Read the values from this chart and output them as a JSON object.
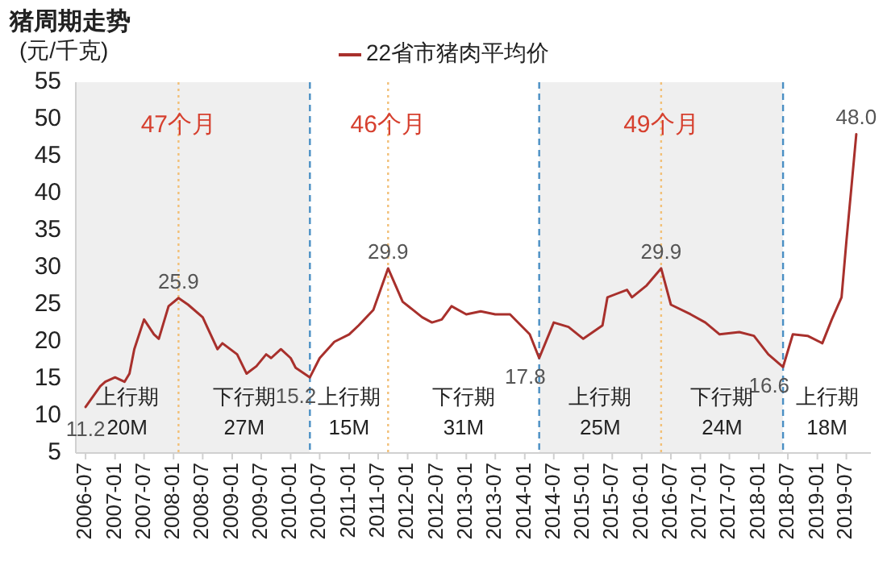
{
  "chart_data": {
    "type": "line",
    "title": "猪周期走势",
    "ylabel": "(元/千克)",
    "legend": "top",
    "x": [
      "2006-07",
      "2006-10",
      "2006-11",
      "2007-01",
      "2007-03",
      "2007-04",
      "2007-05",
      "2007-07",
      "2007-09",
      "2007-10",
      "2007-12",
      "2008-02",
      "2008-04",
      "2008-07",
      "2008-10",
      "2008-11",
      "2009-02",
      "2009-04",
      "2009-06",
      "2009-08",
      "2009-09",
      "2009-11",
      "2010-01",
      "2010-02",
      "2010-05",
      "2010-07",
      "2010-10",
      "2011-01",
      "2011-03",
      "2011-06",
      "2011-09",
      "2011-12",
      "2012-04",
      "2012-06",
      "2012-08",
      "2012-10",
      "2013-01",
      "2013-04",
      "2013-07",
      "2013-10",
      "2014-02",
      "2014-04",
      "2014-07",
      "2014-10",
      "2015-01",
      "2015-05",
      "2015-06",
      "2015-10",
      "2015-11",
      "2016-02",
      "2016-05",
      "2016-07",
      "2016-11",
      "2017-02",
      "2017-05",
      "2017-09",
      "2017-12",
      "2018-03",
      "2018-06",
      "2018-08",
      "2018-11",
      "2019-02",
      "2019-04",
      "2019-06",
      "2019-07",
      "2019-08",
      "2019-09"
    ],
    "series": [
      {
        "name": "22省市猪肉平均价",
        "color": "#a8302c",
        "values": [
          11.2,
          14.0,
          14.6,
          15.2,
          14.6,
          15.7,
          19,
          23,
          21,
          20.4,
          24.8,
          25.9,
          25,
          23.3,
          19,
          19.8,
          18.3,
          15.7,
          16.7,
          18.3,
          17.8,
          19,
          17.8,
          16.5,
          15.2,
          17.8,
          20,
          21,
          22.2,
          24.3,
          29.9,
          25.4,
          23.3,
          22.6,
          23,
          24.8,
          23.7,
          24.1,
          23.7,
          23.7,
          21,
          17.8,
          22.6,
          22,
          20.4,
          22.2,
          26,
          27,
          26,
          27.6,
          29.9,
          25,
          23.7,
          22.6,
          21,
          21.3,
          20.8,
          18.3,
          16.6,
          21,
          20.8,
          19.8,
          23,
          26,
          33.5,
          40.7,
          48.0
        ]
      }
    ],
    "xlim": [
      "2006-05",
      "2019-12"
    ],
    "xticks": [
      "2006-07",
      "2007-01",
      "2007-07",
      "2008-01",
      "2008-07",
      "2009-01",
      "2009-07",
      "2010-01",
      "2010-07",
      "2011-01",
      "2011-07",
      "2012-01",
      "2012-07",
      "2013-01",
      "2013-07",
      "2014-01",
      "2014-07",
      "2015-01",
      "2015-07",
      "2016-01",
      "2016-07",
      "2017-01",
      "2017-07",
      "2018-01",
      "2018-07",
      "2019-01",
      "2019-07"
    ],
    "ylim": [
      5,
      55
    ],
    "yticks": [
      5,
      10,
      15,
      20,
      25,
      30,
      35,
      40,
      45,
      50,
      55
    ],
    "grid": false,
    "marker": "none",
    "line_style": "solid",
    "bands": [
      {
        "axis": "x",
        "from": "2006-05",
        "to": "2010-05",
        "color": "#efefef"
      },
      {
        "axis": "x",
        "from": "2014-04",
        "to": "2018-06",
        "color": "#efefef"
      }
    ],
    "ref_lines": [
      {
        "axis": "x",
        "value": "2010-05",
        "color": "#4a8fc4",
        "line_style": "dashed"
      },
      {
        "axis": "x",
        "value": "2014-04",
        "color": "#4a8fc4",
        "line_style": "dashed"
      },
      {
        "axis": "x",
        "value": "2018-06",
        "color": "#4a8fc4",
        "line_style": "dashed"
      },
      {
        "axis": "x",
        "value": "2008-02",
        "color": "#f2c078",
        "line_style": "dotted"
      },
      {
        "axis": "x",
        "value": "2011-09",
        "color": "#f2c078",
        "line_style": "dotted"
      },
      {
        "axis": "x",
        "value": "2016-05",
        "color": "#f2c078",
        "line_style": "dotted"
      }
    ],
    "annotations": [
      "47个月",
      "46个月",
      "49个月",
      "上行期",
      "20M",
      "下行期",
      "27M",
      "上行期",
      "15M",
      "下行期",
      "31M",
      "上行期",
      "25M",
      "下行期",
      "24M",
      "上行期",
      "18M",
      {
        "text": "11.2",
        "x": "2006-07",
        "y": 11.2
      },
      {
        "text": "25.9",
        "x": "2008-02",
        "y": 25.9
      },
      {
        "text": "15.2",
        "x": "2010-05",
        "y": 15.2
      },
      {
        "text": "29.9",
        "x": "2011-09",
        "y": 29.9
      },
      {
        "text": "17.8",
        "x": "2014-04",
        "y": 17.8
      },
      {
        "text": "29.9",
        "x": "2016-05",
        "y": 29.9
      },
      {
        "text": "16.6",
        "x": "2018-06",
        "y": 16.6
      },
      {
        "text": "48.0",
        "x": "2019-09",
        "y": 48.0
      }
    ]
  }
}
